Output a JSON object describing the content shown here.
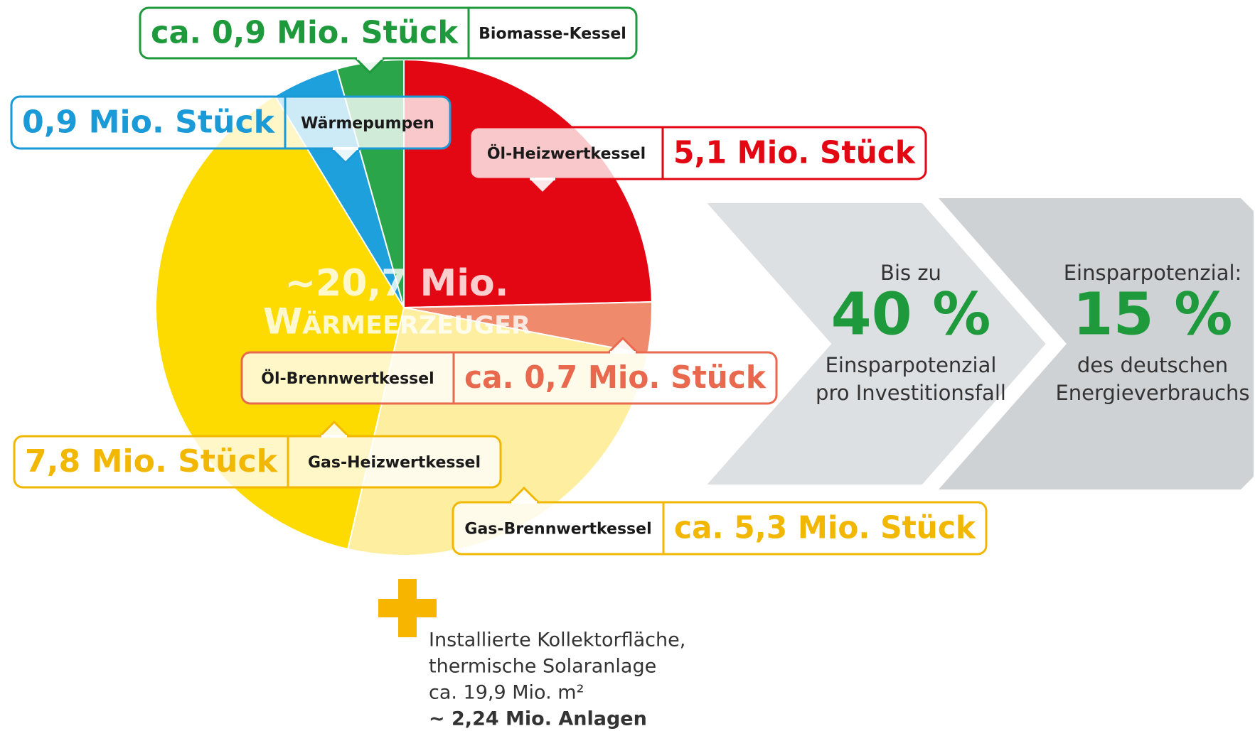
{
  "chart_data": {
    "type": "pie",
    "categories": [
      "Öl-Heizwertkessel",
      "Öl-Brennwertkessel",
      "Gas-Brennwertkessel",
      "Gas-Heizwertkessel",
      "Wärmepumpen",
      "Biomasse-Kessel"
    ],
    "values": [
      5.1,
      0.7,
      5.3,
      7.8,
      0.9,
      0.9
    ],
    "value_labels": [
      "5,1 Mio. Stück",
      "ca. 0,7 Mio. Stück",
      "ca. 5,3 Mio. Stück",
      "7,8 Mio. Stück",
      "0,9 Mio. Stück",
      "ca. 0,9 Mio. Stück"
    ],
    "colors": [
      "#e30613",
      "#f08a6c",
      "#fdeea0",
      "#fddb00",
      "#1ea0dc",
      "#2aa54a"
    ],
    "label_colors": [
      "#e30613",
      "#e9694f",
      "#f2b700",
      "#f2b700",
      "#1a9ad6",
      "#1e9a3d"
    ],
    "center_label": [
      "~20,7 Mio.",
      "Wärmeerzeuger"
    ]
  },
  "panels": [
    {
      "lines": [
        "Bis zu",
        "40 %",
        "Einsparpotenzial",
        "pro Investitionsfall"
      ]
    },
    {
      "lines": [
        "Einsparpotenzial:",
        "15 %",
        "des deutschen",
        "Energieverbrauchs"
      ]
    }
  ],
  "solar": {
    "lines": [
      "Installierte Kollektorfläche,",
      "thermische Solaranlage",
      "ca. 19,9 Mio. m²",
      "~ 2,24 Mio. Anlagen"
    ]
  }
}
